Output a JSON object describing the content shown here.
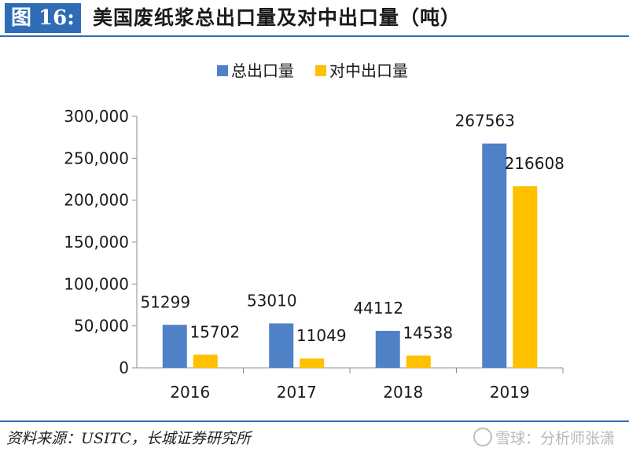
{
  "header": {
    "figure_label": "图 16:",
    "title": "美国废纸浆总出口量及对中出口量（吨）"
  },
  "footer": {
    "source": "资料来源：USITC，长城证券研究所",
    "watermark": "雪球：分析师张潇"
  },
  "colors": {
    "accent": "#2f6cb5",
    "series_total": "#4f81c7",
    "series_china": "#ffc000"
  },
  "chart_data": {
    "type": "bar",
    "categories": [
      "2016",
      "2017",
      "2018",
      "2019"
    ],
    "series": [
      {
        "name": "总出口量",
        "values": [
          51299,
          53010,
          44112,
          267563
        ],
        "labels": [
          "51299",
          "53010",
          "44112",
          "267563"
        ]
      },
      {
        "name": "对中出口量",
        "values": [
          15702,
          11049,
          14538,
          216608
        ],
        "labels": [
          "15702",
          "11049",
          "14538",
          "216608"
        ]
      }
    ],
    "ylim": [
      0,
      300000
    ],
    "yticks": [
      0,
      50000,
      100000,
      150000,
      200000,
      250000,
      300000
    ],
    "ytick_labels": [
      "0",
      "50,000",
      "100,000",
      "150,000",
      "200,000",
      "250,000",
      "300,000"
    ],
    "legend_position": "top-center",
    "grid": false
  }
}
